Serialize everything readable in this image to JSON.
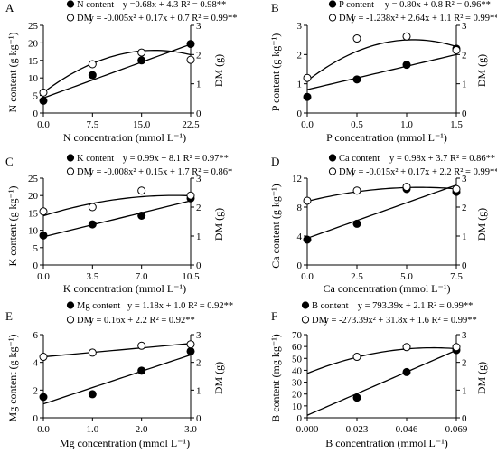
{
  "chart_data": [
    {
      "type": "scatter",
      "panel_label": "A",
      "legend": [
        {
          "name": "N content",
          "equation": "y =0.68x + 4.3 R² = 0.98**",
          "marker": "filled"
        },
        {
          "name": "DM",
          "equation": "y = -0.005x² + 0.17x + 0.7 R² = 0.99**",
          "marker": "open"
        }
      ],
      "xlabel": "N concentration (mmol L⁻¹)",
      "ylabel": "N content (g kg⁻¹)",
      "y2label": "DM (g)",
      "xlim": [
        0,
        22.5
      ],
      "ylim": [
        0,
        25
      ],
      "y2lim": [
        0,
        3
      ],
      "xticks": [
        0,
        7.5,
        15,
        22.5
      ],
      "xtick_labels": [
        "0.0",
        "7.5",
        "15.0",
        "22.5"
      ],
      "yticks": [
        0,
        5,
        10,
        15,
        20,
        25
      ],
      "ytick_labels": [
        "0",
        "5",
        "10",
        "15",
        "20",
        "25"
      ],
      "y2ticks": [
        0,
        1,
        2,
        3
      ],
      "y2tick_labels": [
        "0",
        "1",
        "2",
        "3"
      ],
      "series": [
        {
          "name": "N content",
          "axis": "left",
          "marker": "filled",
          "x": [
            0,
            7.5,
            15,
            22.5
          ],
          "y": [
            3.5,
            10.8,
            15,
            19.7
          ],
          "fit": {
            "kind": "linear",
            "coef": [
              0.68,
              4.3
            ]
          }
        },
        {
          "name": "DM",
          "axis": "right",
          "marker": "open",
          "x": [
            0,
            7.5,
            15,
            22.5
          ],
          "y": [
            0.7,
            1.67,
            2.07,
            1.82
          ],
          "fit": {
            "kind": "quadratic",
            "coef": [
              -0.005,
              0.17,
              0.7
            ]
          }
        }
      ]
    },
    {
      "type": "scatter",
      "panel_label": "B",
      "legend": [
        {
          "name": "P content",
          "equation": "y = 0.80x + 0.8 R² = 0.96**",
          "marker": "filled"
        },
        {
          "name": "DM",
          "equation": "y = -1.238x² + 2.64x + 1.1 R² = 0.99**",
          "marker": "open"
        }
      ],
      "xlabel": "P concentration (mmol L⁻¹)",
      "ylabel": "P content (g kg⁻¹)",
      "y2label": "DM (g)",
      "xlim": [
        0,
        1.5
      ],
      "ylim": [
        0,
        3
      ],
      "y2lim": [
        0,
        3
      ],
      "xticks": [
        0,
        0.5,
        1,
        1.5
      ],
      "xtick_labels": [
        "0.0",
        "0.5",
        "1.0",
        "1.5"
      ],
      "yticks": [
        0,
        1,
        2,
        3
      ],
      "ytick_labels": [
        "0",
        "1",
        "2",
        "3"
      ],
      "y2ticks": [
        0,
        1,
        2,
        3
      ],
      "y2tick_labels": [
        "0",
        "1",
        "2",
        "3"
      ],
      "series": [
        {
          "name": "P content",
          "axis": "left",
          "marker": "filled",
          "x": [
            0,
            0.5,
            1,
            1.5
          ],
          "y": [
            0.55,
            1.15,
            1.65,
            2.2
          ],
          "fit": {
            "kind": "linear",
            "coef": [
              0.8,
              0.8
            ]
          }
        },
        {
          "name": "DM",
          "axis": "right",
          "marker": "open",
          "x": [
            0,
            0.5,
            1,
            1.5
          ],
          "y": [
            1.2,
            2.55,
            2.62,
            2.15
          ],
          "fit": {
            "kind": "quadratic",
            "coef": [
              -1.238,
              2.64,
              1.1
            ]
          }
        }
      ]
    },
    {
      "type": "scatter",
      "panel_label": "C",
      "legend": [
        {
          "name": "K content",
          "equation": "y = 0.99x + 8.1 R² = 0.97**",
          "marker": "filled"
        },
        {
          "name": "DM",
          "equation": "y = -0.008x² + 0.15x + 1.7 R² = 0.86*",
          "marker": "open"
        }
      ],
      "xlabel": "K concentration (mmol L⁻¹)",
      "ylabel": "K content (g kg⁻¹)",
      "y2label": "DM (g)",
      "xlim": [
        0,
        10.5
      ],
      "ylim": [
        0,
        25
      ],
      "y2lim": [
        0,
        3
      ],
      "xticks": [
        0,
        3.5,
        7,
        10.5
      ],
      "xtick_labels": [
        "0.0",
        "3.5",
        "7.0",
        "10.5"
      ],
      "yticks": [
        0,
        5,
        10,
        15,
        20,
        25
      ],
      "ytick_labels": [
        "0",
        "5",
        "10",
        "15",
        "20",
        "25"
      ],
      "y2ticks": [
        0,
        1,
        2,
        3
      ],
      "y2tick_labels": [
        "0",
        "1",
        "2",
        "3"
      ],
      "series": [
        {
          "name": "K content",
          "axis": "left",
          "marker": "filled",
          "x": [
            0,
            3.5,
            7,
            10.5
          ],
          "y": [
            8.5,
            11.7,
            14.2,
            19.2
          ],
          "fit": {
            "kind": "linear",
            "coef": [
              0.99,
              8.1
            ]
          }
        },
        {
          "name": "DM",
          "axis": "right",
          "marker": "open",
          "x": [
            0,
            3.5,
            7,
            10.5
          ],
          "y": [
            1.85,
            2.0,
            2.57,
            2.4
          ],
          "fit": {
            "kind": "quadratic",
            "coef": [
              -0.008,
              0.15,
              1.7
            ]
          }
        }
      ]
    },
    {
      "type": "scatter",
      "panel_label": "D",
      "legend": [
        {
          "name": "Ca content",
          "equation": "y = 0.98x + 3.7 R² = 0.86**",
          "marker": "filled"
        },
        {
          "name": "DM",
          "equation": "y = -0.015x² + 0.17x + 2.2 R² = 0.99**",
          "marker": "open"
        }
      ],
      "xlabel": "Ca concentration (mmol L⁻¹)",
      "ylabel": "Ca content (g kg⁻¹)",
      "y2label": "DM (g)",
      "xlim": [
        0,
        7.5
      ],
      "ylim": [
        0,
        12
      ],
      "y2lim": [
        0,
        3
      ],
      "xticks": [
        0,
        2.5,
        5,
        7.5
      ],
      "xtick_labels": [
        "0.0",
        "2.5",
        "5.0",
        "7.5"
      ],
      "yticks": [
        0,
        4,
        8,
        12
      ],
      "ytick_labels": [
        "0",
        "4",
        "8",
        "12"
      ],
      "y2ticks": [
        0,
        1,
        2,
        3
      ],
      "y2tick_labels": [
        "0",
        "1",
        "2",
        "3"
      ],
      "series": [
        {
          "name": "Ca content",
          "axis": "left",
          "marker": "filled",
          "x": [
            0,
            2.5,
            5,
            7.5
          ],
          "y": [
            3.5,
            5.7,
            10.5,
            10.1
          ],
          "fit": {
            "kind": "linear",
            "coef": [
              0.98,
              3.7
            ]
          }
        },
        {
          "name": "DM",
          "axis": "right",
          "marker": "open",
          "x": [
            0,
            2.5,
            5,
            7.5
          ],
          "y": [
            2.22,
            2.57,
            2.7,
            2.62
          ],
          "fit": {
            "kind": "quadratic",
            "coef": [
              -0.015,
              0.17,
              2.2
            ]
          }
        }
      ]
    },
    {
      "type": "scatter",
      "panel_label": "E",
      "legend": [
        {
          "name": "Mg content",
          "equation": "y = 1.18x + 1.0 R² = 0.92**",
          "marker": "filled"
        },
        {
          "name": "DM",
          "equation": "y = 0.16x + 2.2 R² = 0.92**",
          "marker": "open"
        }
      ],
      "xlabel": "Mg concentration (mmol L⁻¹)",
      "ylabel": "Mg content (g kg⁻¹)",
      "y2label": "DM (g)",
      "xlim": [
        0,
        3
      ],
      "ylim": [
        0,
        6
      ],
      "y2lim": [
        0,
        3
      ],
      "xticks": [
        0,
        1,
        2,
        3
      ],
      "xtick_labels": [
        "0.0",
        "1.0",
        "2.0",
        "3.0"
      ],
      "yticks": [
        0,
        2,
        4,
        6
      ],
      "ytick_labels": [
        "0",
        "2",
        "4",
        "6"
      ],
      "y2ticks": [
        0,
        1,
        2,
        3
      ],
      "y2tick_labels": [
        "0",
        "1",
        "2",
        "3"
      ],
      "series": [
        {
          "name": "Mg content",
          "axis": "left",
          "marker": "filled",
          "x": [
            0,
            1,
            2,
            3
          ],
          "y": [
            1.5,
            1.7,
            3.4,
            4.8
          ],
          "fit": {
            "kind": "linear",
            "coef": [
              1.18,
              1.0
            ]
          }
        },
        {
          "name": "DM",
          "axis": "right",
          "marker": "open",
          "x": [
            0,
            1,
            2,
            3
          ],
          "y": [
            2.2,
            2.35,
            2.6,
            2.65
          ],
          "fit": {
            "kind": "linear",
            "coef": [
              0.16,
              2.2
            ]
          }
        }
      ]
    },
    {
      "type": "scatter",
      "panel_label": "F",
      "legend": [
        {
          "name": "B content",
          "equation": "y = 793.39x + 2.1 R² = 0.99**",
          "marker": "filled"
        },
        {
          "name": "DM",
          "equation": "y = -273.39x² + 31.8x + 1.6 R² = 0.99**",
          "marker": "open"
        }
      ],
      "xlabel": "B concentration (mmol L⁻¹)",
      "ylabel": "B content (mg kg⁻¹)",
      "y2label": "DM (g)",
      "xlim": [
        0,
        0.069
      ],
      "ylim": [
        0,
        70
      ],
      "y2lim": [
        0,
        3
      ],
      "xticks": [
        0,
        0.023,
        0.046,
        0.069
      ],
      "xtick_labels": [
        "0.000",
        "0.023",
        "0.046",
        "0.069"
      ],
      "yticks": [
        0,
        10,
        20,
        30,
        40,
        50,
        60,
        70
      ],
      "ytick_labels": [
        "0",
        "10",
        "20",
        "30",
        "40",
        "50",
        "60",
        "70"
      ],
      "y2ticks": [
        0,
        1,
        2,
        3
      ],
      "y2tick_labels": [
        "0",
        "1",
        "2",
        "3"
      ],
      "series": [
        {
          "name": "B content",
          "axis": "left",
          "marker": "filled",
          "x": [
            0.023,
            0.046,
            0.069
          ],
          "y": [
            17,
            38.5,
            57
          ],
          "fit": {
            "kind": "linear",
            "coef": [
              793.39,
              2.1
            ]
          }
        },
        {
          "name": "DM",
          "axis": "right",
          "marker": "open",
          "x": [
            0.023,
            0.046,
            0.069
          ],
          "y": [
            2.2,
            2.55,
            2.55
          ],
          "fit": {
            "kind": "quadratic",
            "coef": [
              -273.39,
              31.8,
              1.6
            ]
          }
        }
      ]
    }
  ]
}
